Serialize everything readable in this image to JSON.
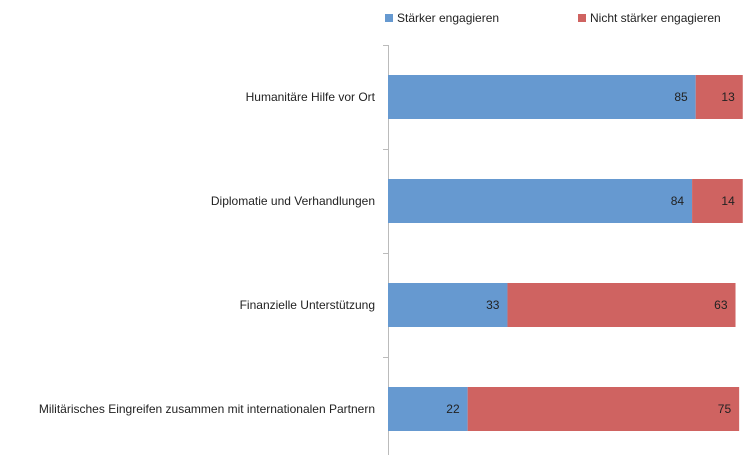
{
  "chart_data": {
    "type": "stacked-bar-horizontal",
    "categories": [
      "Humanitäre Hilfe vor Ort",
      "Diplomatie und Verhandlungen",
      "Finanzielle Unterstützung",
      "Militärisches Eingreifen zusammen mit internationalen Partnern"
    ],
    "series": [
      {
        "name": "Stärker engagieren",
        "color": "#6699d0",
        "values": [
          85,
          84,
          33,
          22
        ]
      },
      {
        "name": "Nicht stärker engagieren",
        "color": "#cf6361",
        "values": [
          13,
          14,
          63,
          75
        ]
      }
    ],
    "xlim": [
      0,
      100
    ]
  }
}
